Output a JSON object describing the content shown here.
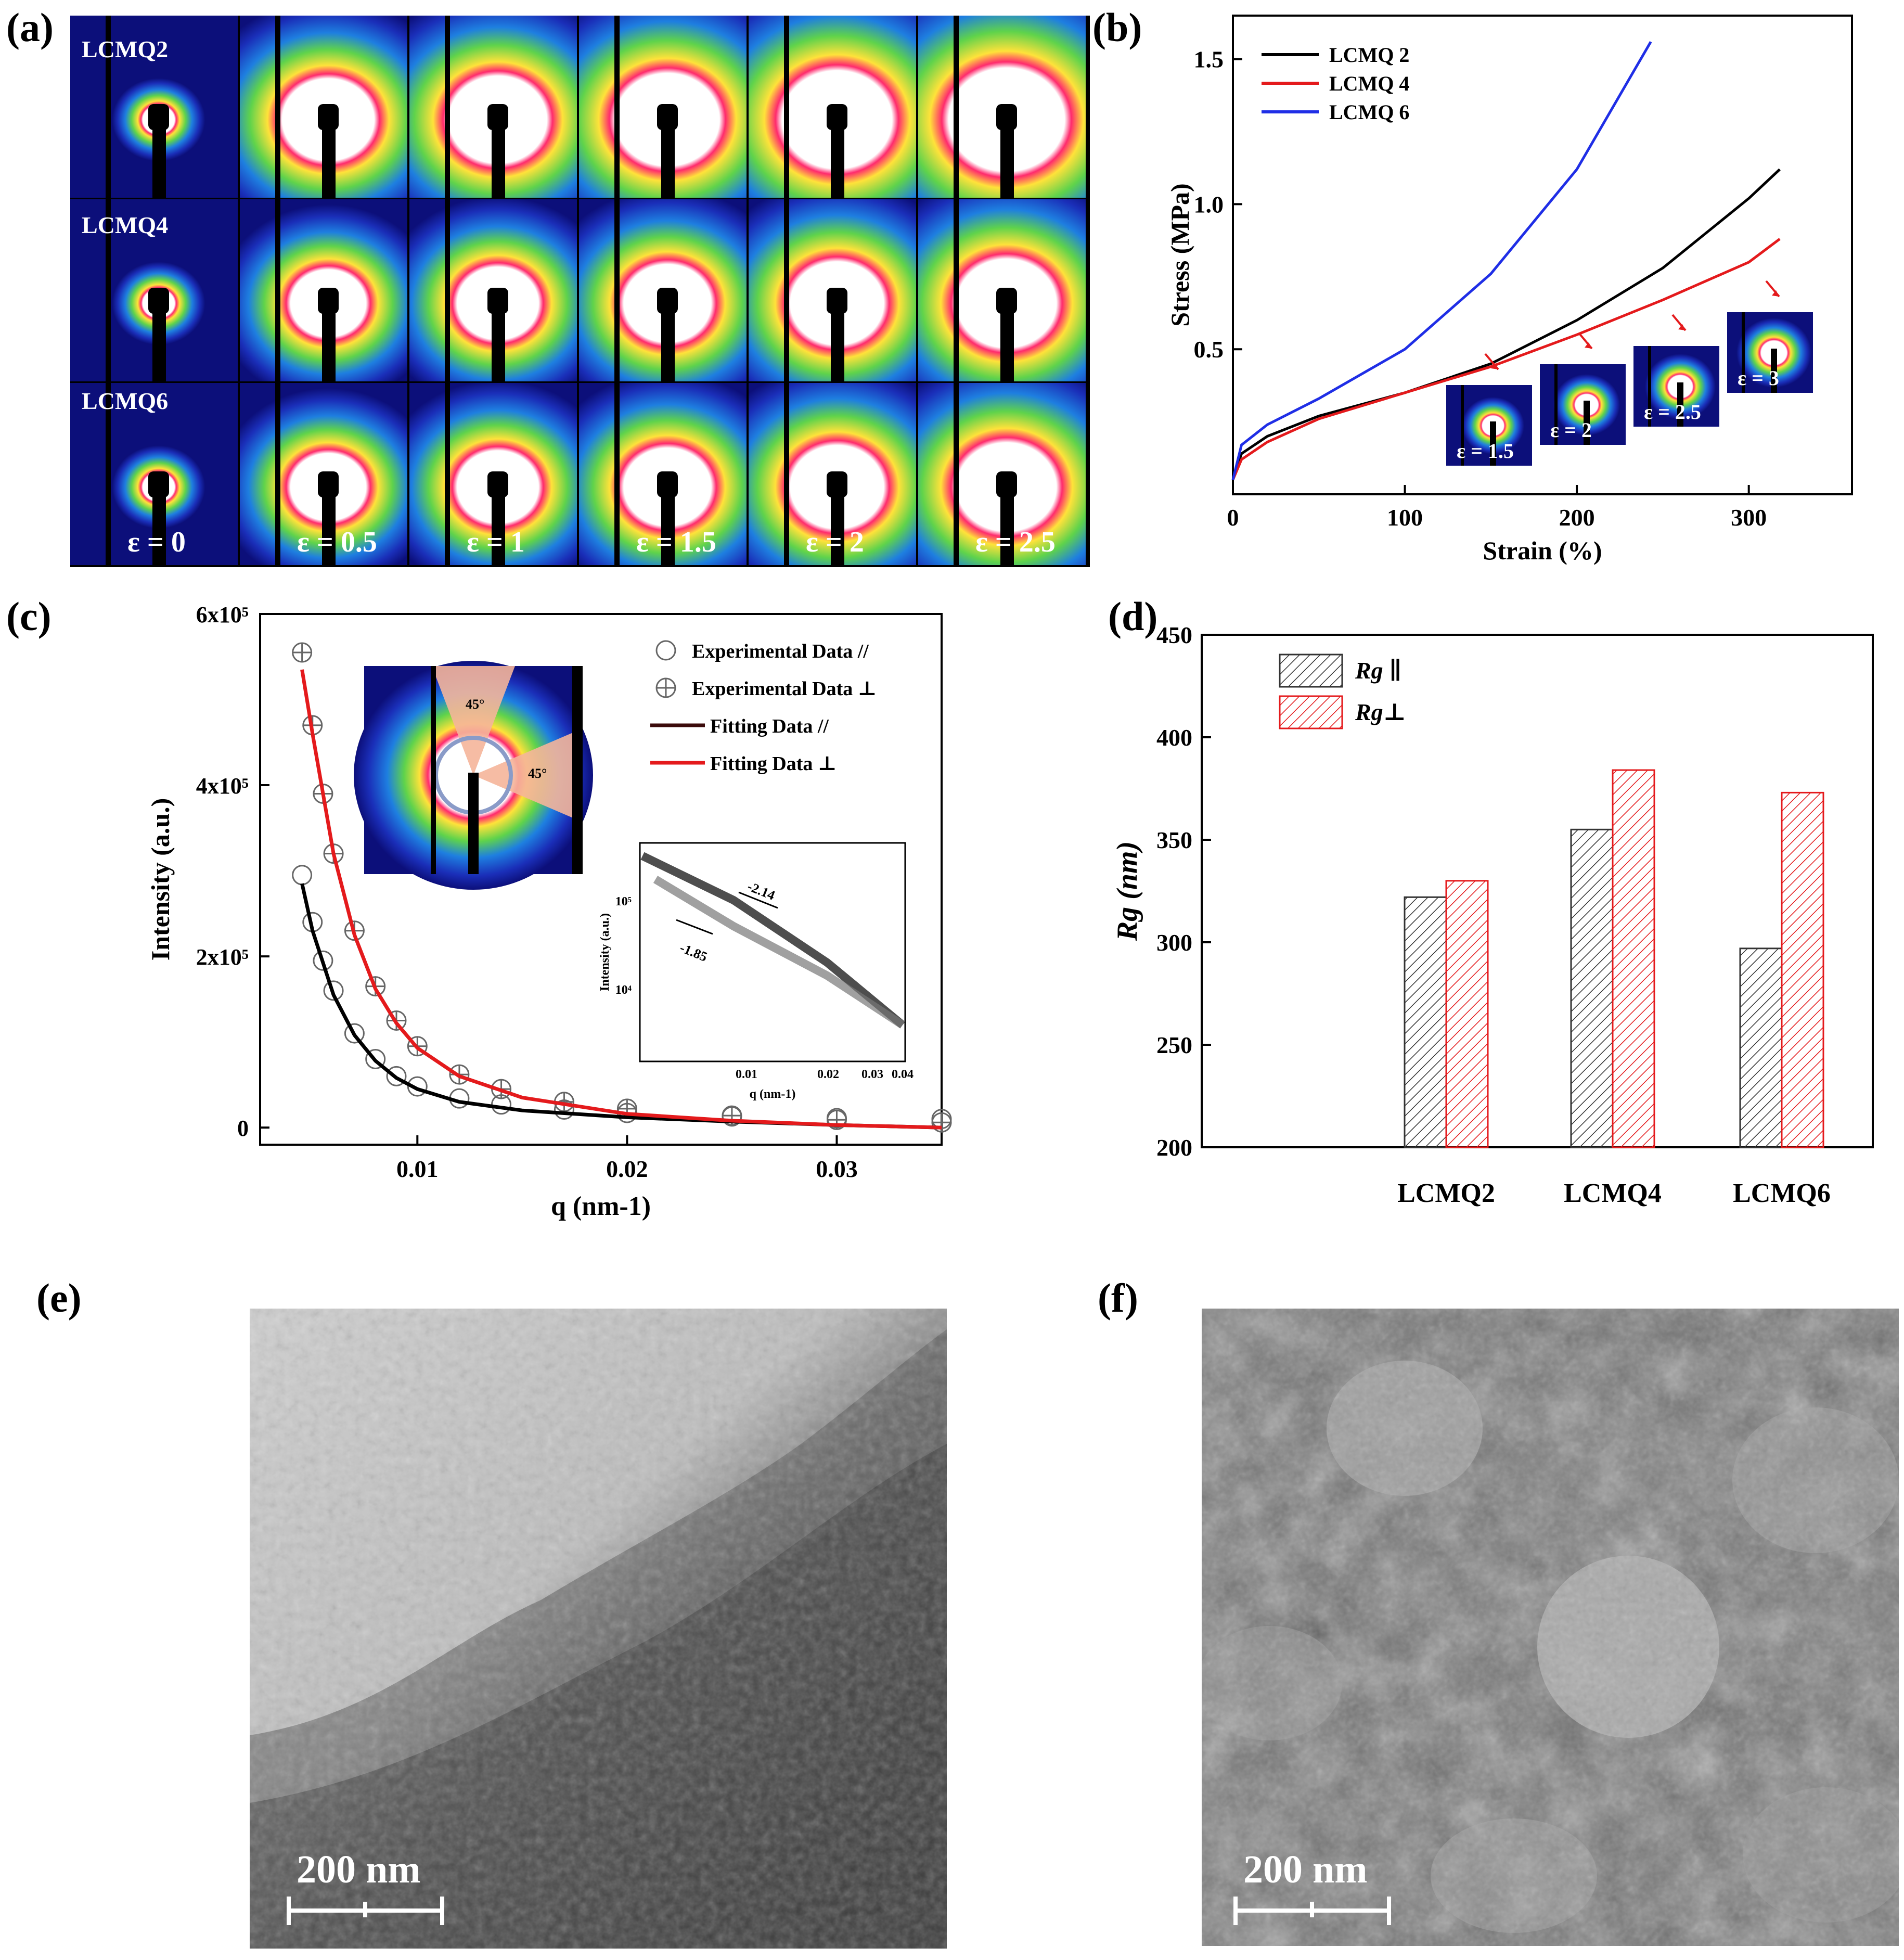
{
  "panels": {
    "a": "(a)",
    "b": "(b)",
    "c": "(c)",
    "d": "(d)",
    "e": "(e)",
    "f": "(f)"
  },
  "panel_a": {
    "samples": [
      "LCMQ2",
      "LCMQ4",
      "LCMQ6"
    ],
    "strains": [
      "ε = 0",
      "ε = 0.5",
      "ε = 1",
      "ε = 1.5",
      "ε = 2",
      "ε = 2.5"
    ]
  },
  "panel_b_insets": [
    "ε = 1.5",
    "ε = 2",
    "ε = 2.5",
    "ε = 3"
  ],
  "panel_c_inset_pattern": {
    "angle_a": "45°",
    "angle_b": "45°"
  },
  "panel_e": {
    "scale": "200 nm"
  },
  "panel_f": {
    "scale": "200 nm"
  },
  "colors": {
    "black": "#000000",
    "red": "#e41a1c",
    "blue": "#1f2ee6"
  },
  "chart_data": [
    {
      "id": "b",
      "type": "line",
      "xlabel": "Strain (%)",
      "ylabel": "Stress (MPa)",
      "xlim": [
        0,
        360
      ],
      "ylim": [
        0,
        1.65
      ],
      "xticks": [
        0,
        100,
        200,
        300
      ],
      "yticks": [
        0.5,
        1.0,
        1.5
      ],
      "xtick_labels": [
        "0",
        "100",
        "200",
        "300"
      ],
      "ytick_labels": [
        "0.5",
        "1.0",
        "1.5"
      ],
      "legend_position": "top-left",
      "series": [
        {
          "name": "LCMQ 2",
          "color": "#000000",
          "x": [
            0,
            5,
            20,
            50,
            100,
            150,
            200,
            250,
            300,
            318
          ],
          "y": [
            0.05,
            0.14,
            0.2,
            0.27,
            0.35,
            0.45,
            0.6,
            0.78,
            1.02,
            1.12
          ]
        },
        {
          "name": "LCMQ 4",
          "color": "#e41a1c",
          "x": [
            0,
            5,
            20,
            50,
            100,
            150,
            200,
            250,
            300,
            318
          ],
          "y": [
            0.05,
            0.12,
            0.18,
            0.26,
            0.35,
            0.44,
            0.55,
            0.67,
            0.8,
            0.88
          ]
        },
        {
          "name": "LCMQ 6",
          "color": "#1f2ee6",
          "x": [
            0,
            5,
            20,
            50,
            100,
            150,
            200,
            243
          ],
          "y": [
            0.05,
            0.17,
            0.24,
            0.33,
            0.5,
            0.76,
            1.12,
            1.56
          ]
        }
      ]
    },
    {
      "id": "c",
      "type": "scatter",
      "xlabel": "q (nm-1)",
      "ylabel": "Intensity (a.u.)",
      "xlim": [
        0.0025,
        0.035
      ],
      "ylim": [
        -20000,
        600000
      ],
      "xticks": [
        0.01,
        0.02,
        0.03
      ],
      "xtick_labels": [
        "0.01",
        "0.02",
        "0.03"
      ],
      "yticks": [
        0,
        200000,
        400000,
        600000
      ],
      "ytick_labels": [
        "0",
        "2x10⁵",
        "4x10⁵",
        "6x10⁵"
      ],
      "legend": [
        "Experimental Data //",
        "Experimental Data ⊥",
        "Fitting Data //",
        "Fitting Data ⊥"
      ],
      "series": [
        {
          "name": "Experimental Data //",
          "color": "#888888",
          "x": [
            0.0045,
            0.005,
            0.0055,
            0.006,
            0.007,
            0.008,
            0.009,
            0.01,
            0.012,
            0.014,
            0.017,
            0.02,
            0.025,
            0.03,
            0.035
          ],
          "y": [
            295000,
            240000,
            195000,
            160000,
            110000,
            80000,
            60000,
            48000,
            34000,
            27000,
            21000,
            17000,
            13000,
            11000,
            10000
          ]
        },
        {
          "name": "Experimental Data ⊥",
          "color": "#888888",
          "x": [
            0.0045,
            0.005,
            0.0055,
            0.006,
            0.007,
            0.008,
            0.009,
            0.01,
            0.012,
            0.014,
            0.017,
            0.02,
            0.025,
            0.03,
            0.035
          ],
          "y": [
            555000,
            470000,
            390000,
            320000,
            230000,
            165000,
            125000,
            95000,
            62000,
            45000,
            30000,
            22000,
            14000,
            9000,
            6000
          ]
        },
        {
          "name": "Fitting Data //",
          "color": "#000000",
          "x": [
            0.0045,
            0.005,
            0.006,
            0.007,
            0.008,
            0.009,
            0.01,
            0.012,
            0.015,
            0.02,
            0.025,
            0.03,
            0.035
          ],
          "y": [
            285000,
            230000,
            155000,
            108000,
            78000,
            58000,
            45000,
            30000,
            20000,
            12000,
            7000,
            3000,
            0
          ]
        },
        {
          "name": "Fitting Data ⊥",
          "color": "#e41a1c",
          "x": [
            0.0045,
            0.005,
            0.006,
            0.007,
            0.008,
            0.009,
            0.01,
            0.012,
            0.015,
            0.02,
            0.025,
            0.03,
            0.035
          ],
          "y": [
            535000,
            460000,
            320000,
            225000,
            162000,
            122000,
            93000,
            60000,
            35000,
            16000,
            8000,
            3000,
            0
          ]
        }
      ],
      "inset": {
        "type": "line",
        "scale": "log-log",
        "xlabel": "q (nm-1)",
        "ylabel": "Intensity (a.u.)",
        "xtick_labels": [
          "0.01",
          "0.02",
          "0.03",
          "0.04"
        ],
        "ytick_labels": [
          "10⁵",
          "10⁴"
        ],
        "annotations": [
          "-2.14",
          "-1.85"
        ]
      }
    },
    {
      "id": "d",
      "type": "bar",
      "categories": [
        "LCMQ2",
        "LCMQ4",
        "LCMQ6"
      ],
      "ylabel": "Rg (nm)",
      "ylim": [
        200,
        450
      ],
      "yticks": [
        200,
        250,
        300,
        350,
        400,
        450
      ],
      "ytick_labels": [
        "200",
        "250",
        "300",
        "350",
        "400",
        "450"
      ],
      "series": [
        {
          "name": "Rg ∥",
          "color": "#333333",
          "values": [
            322,
            355,
            297
          ]
        },
        {
          "name": "Rg⊥",
          "color": "#e41a1c",
          "values": [
            330,
            384,
            373
          ]
        }
      ]
    }
  ]
}
